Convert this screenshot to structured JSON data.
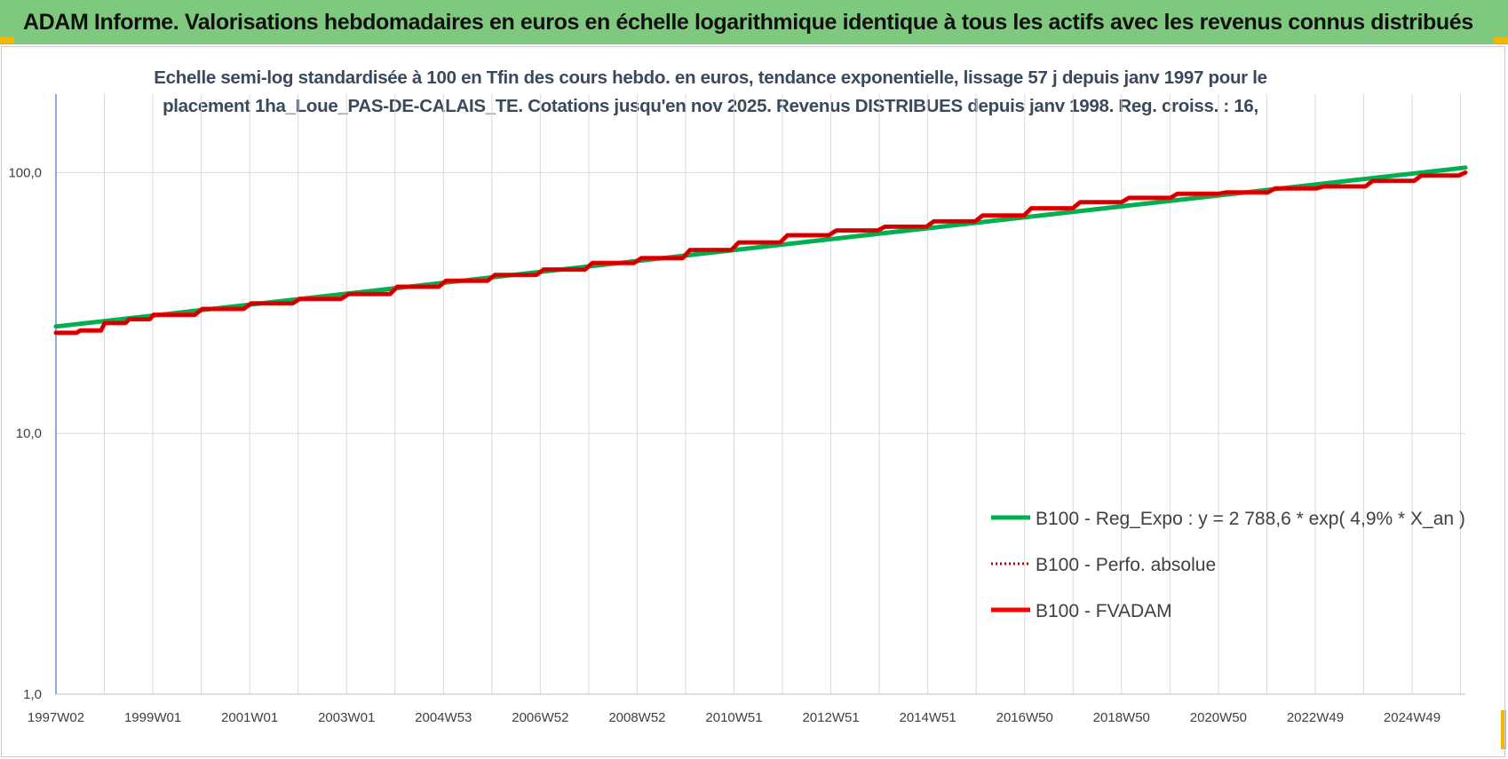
{
  "banner": {
    "title": "ADAM Informe. Valorisations hebdomadaires en euros en échelle logarithmique identique à tous les actifs avec les revenus connus distribués"
  },
  "colors": {
    "banner_bg": "#7fc97f",
    "corner_accent": "#f2b705",
    "regression": "#00b050",
    "perfo": "#c00000",
    "fvadam": "#ff0000",
    "grid": "#d9d9d9"
  },
  "chart_data": {
    "type": "line",
    "title_lines": [
      "Echelle semi-log standardisée à 100 en Tfin des cours hebdo. en euros, tendance exponentielle, lissage 57 j depuis janv 1997 pour le",
      "placement 1ha_Loue_PAS-DE-CALAIS_TE. Cotations jusqu'en nov 2025. Revenus DISTRIBUES depuis janv 1998. Reg. croiss. : 16,"
    ],
    "y_scale": "log",
    "ylim": [
      1,
      200
    ],
    "y_ticks": [
      "1,0",
      "10,0",
      "100,0"
    ],
    "x_tick_labels": [
      "1997W02",
      "1999W01",
      "2001W01",
      "2003W01",
      "2004W53",
      "2006W52",
      "2008W52",
      "2010W51",
      "2012W51",
      "2014W51",
      "2016W50",
      "2018W50",
      "2020W50",
      "2022W49",
      "2024W49"
    ],
    "xlim": [
      1997.0,
      2025.9
    ],
    "grid": true,
    "legend_position": "bottom-right",
    "series": [
      {
        "name": "B100 - Reg_Expo : y = 2 788,6 * exp( 4,9% *  X_an )",
        "style": "solid",
        "x": [
          1997.0,
          2025.9
        ],
        "values": [
          25.7,
          104.5
        ]
      },
      {
        "name": "B100 - Perfo. absolue",
        "style": "dotted",
        "x": [
          1997.0,
          1997.5,
          1998.0,
          1998.5,
          1999.0,
          2000.0,
          2001.0,
          2002.0,
          2003.0,
          2004.0,
          2005.0,
          2006.0,
          2007.0,
          2008.0,
          2009.0,
          2010.0,
          2011.0,
          2012.0,
          2013.0,
          2014.0,
          2015.0,
          2016.0,
          2017.0,
          2018.0,
          2019.0,
          2020.0,
          2021.0,
          2022.0,
          2023.0,
          2024.0,
          2025.0,
          2025.9
        ],
        "values": [
          24.3,
          24.8,
          26.5,
          27.4,
          28.5,
          30.0,
          31.5,
          32.8,
          34.2,
          36.5,
          38.5,
          40.5,
          42.5,
          45.0,
          47.0,
          50.5,
          54.0,
          57.5,
          60.0,
          62.0,
          65.0,
          68.5,
          73.0,
          77.0,
          80.0,
          83.0,
          84.0,
          87.0,
          88.5,
          93.0,
          97.5,
          100.0
        ]
      },
      {
        "name": "B100 - FVADAM",
        "style": "solid",
        "x": [
          1997.0,
          1997.5,
          1998.0,
          1998.5,
          1999.0,
          2000.0,
          2001.0,
          2002.0,
          2003.0,
          2004.0,
          2005.0,
          2006.0,
          2007.0,
          2008.0,
          2009.0,
          2010.0,
          2011.0,
          2012.0,
          2013.0,
          2014.0,
          2015.0,
          2016.0,
          2017.0,
          2018.0,
          2019.0,
          2020.0,
          2021.0,
          2022.0,
          2023.0,
          2024.0,
          2025.0,
          2025.9
        ],
        "values": [
          24.3,
          24.8,
          26.5,
          27.4,
          28.5,
          30.0,
          31.5,
          32.8,
          34.2,
          36.5,
          38.5,
          40.5,
          42.5,
          45.0,
          47.0,
          50.5,
          54.0,
          57.5,
          60.0,
          62.0,
          65.0,
          68.5,
          73.0,
          77.0,
          80.0,
          83.0,
          84.0,
          87.0,
          88.5,
          93.0,
          97.5,
          100.0
        ]
      }
    ]
  }
}
